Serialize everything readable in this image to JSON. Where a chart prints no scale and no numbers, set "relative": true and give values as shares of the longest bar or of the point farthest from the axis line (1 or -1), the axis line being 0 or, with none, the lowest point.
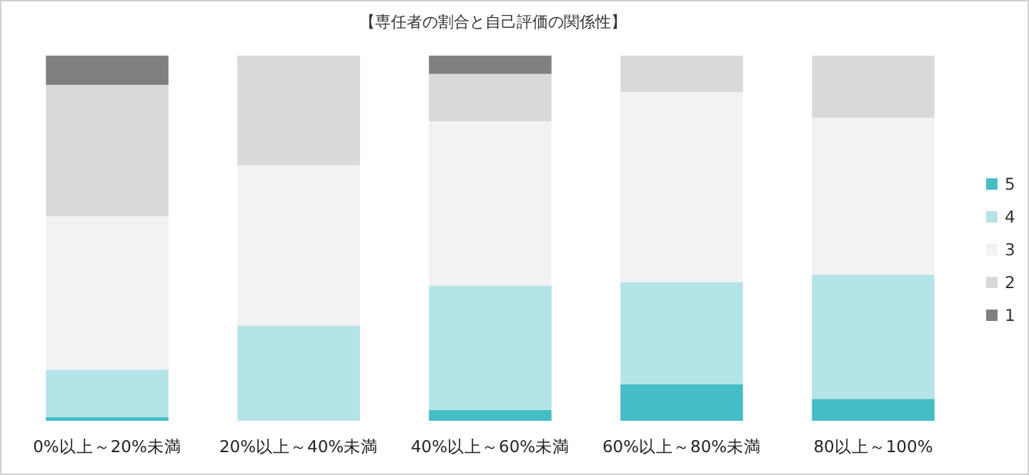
{
  "chart_data": {
    "type": "bar",
    "title": "【専任者の割合と自己評価の関係性】",
    "categories": [
      "0%以上～20%未満",
      "20%以上～40%未満",
      "40%以上～60%未満",
      "60%以上～80%未満",
      "80以上～100%"
    ],
    "stacked": true,
    "relative": true,
    "legend": "right",
    "series": [
      {
        "name": "5",
        "color": "#45bcc6",
        "values": [
          0.01,
          0,
          0.03,
          0.1,
          0.06
        ]
      },
      {
        "name": "4",
        "color": "#b4e3e8",
        "values": [
          0.13,
          0.26,
          0.34,
          0.28,
          0.34
        ]
      },
      {
        "name": "3",
        "color": "#f2f2f2",
        "values": [
          0.42,
          0.44,
          0.45,
          0.52,
          0.43
        ]
      },
      {
        "name": "2",
        "color": "#d9d9d9",
        "values": [
          0.36,
          0.3,
          0.13,
          0.1,
          0.17
        ]
      },
      {
        "name": "1",
        "color": "#808080",
        "values": [
          0.08,
          0,
          0.05,
          0,
          0
        ]
      }
    ]
  }
}
